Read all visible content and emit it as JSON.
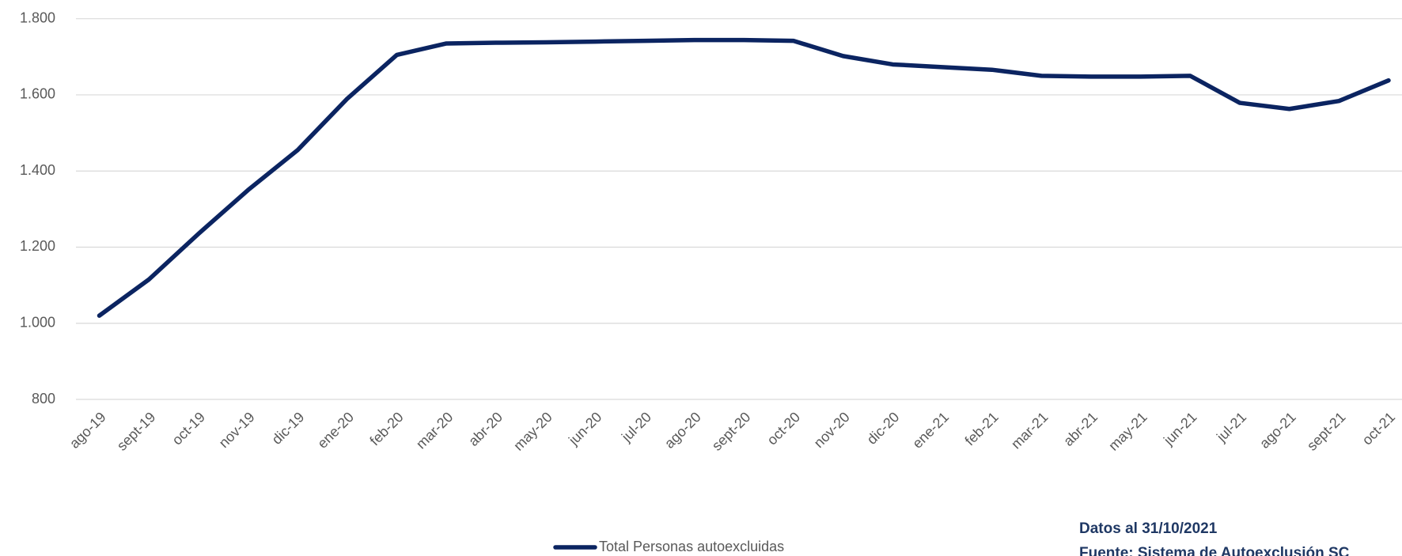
{
  "chart_data": {
    "type": "line",
    "categories": [
      "ago-19",
      "sept-19",
      "oct-19",
      "nov-19",
      "dic-19",
      "ene-20",
      "feb-20",
      "mar-20",
      "abr-20",
      "may-20",
      "jun-20",
      "jul-20",
      "ago-20",
      "sept-20",
      "oct-20",
      "nov-20",
      "dic-20",
      "ene-21",
      "feb-21",
      "mar-21",
      "abr-21",
      "may-21",
      "jun-21",
      "jul-21",
      "ago-21",
      "sept-21",
      "oct-21"
    ],
    "series": [
      {
        "name": "Total Personas autoexcluidas",
        "color": "#0b2461",
        "values": [
          1020,
          1115,
          1235,
          1350,
          1455,
          1590,
          1705,
          1735,
          1737,
          1738,
          1740,
          1742,
          1744,
          1744,
          1742,
          1702,
          1680,
          1673,
          1666,
          1650,
          1648,
          1648,
          1650,
          1579,
          1563,
          1584,
          1638
        ]
      }
    ],
    "ylim": [
      800,
      1800
    ],
    "yticks": [
      800,
      {
        "value": 1000,
        "label": "1.000"
      },
      {
        "value": 1200,
        "label": "1.200"
      },
      {
        "value": 1400,
        "label": "1.400"
      },
      {
        "value": 1600,
        "label": "1.600"
      },
      {
        "value": 1800,
        "label": "1.800"
      }
    ],
    "grid": true,
    "legend": "bottom",
    "annotations": [
      "Datos al 31/10/2021",
      "Fuente: Sistema de Autoexclusión SC"
    ]
  }
}
